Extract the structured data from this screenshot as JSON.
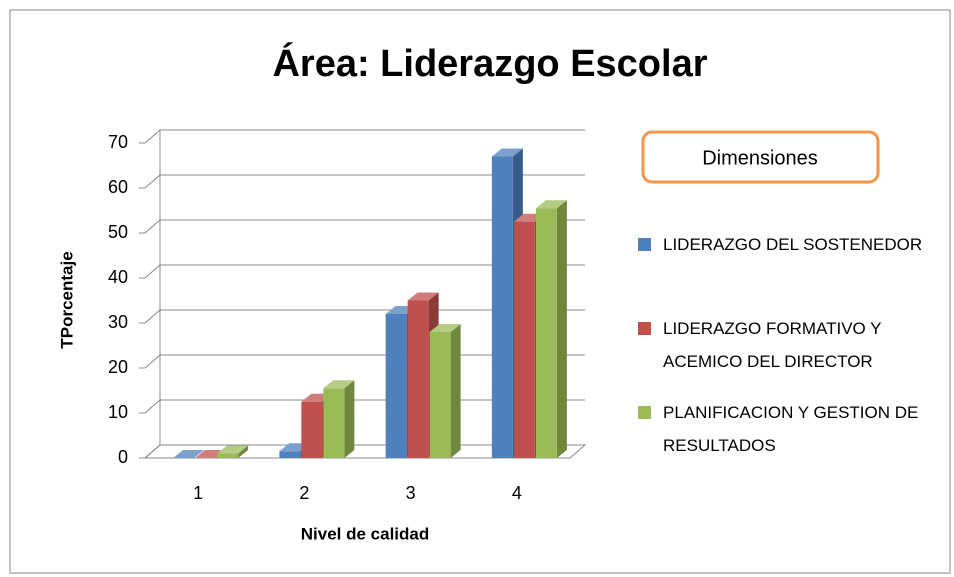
{
  "chart_data": {
    "type": "bar3d",
    "title": "Área: Liderazgo Escolar",
    "xlabel": "Nivel de calidad",
    "ylabel": "TPorcentaje",
    "categories": [
      "1",
      "2",
      "3",
      "4"
    ],
    "legend_title": "Dimensiones",
    "series": [
      {
        "name": "LIDERAZGO DEL SOSTENEDOR",
        "color": "#4f81bd",
        "values": [
          0,
          1.5,
          32,
          67
        ]
      },
      {
        "name": "LIDERAZGO FORMATIVO Y ACEMICO DEL DIRECTOR",
        "color": "#c0504d",
        "values": [
          0,
          12.5,
          35,
          52.5
        ]
      },
      {
        "name": "PLANIFICACION Y GESTION DE RESULTADOS",
        "color": "#9bbb59",
        "values": [
          1,
          15.5,
          28,
          55.5
        ]
      }
    ],
    "ylim": [
      0,
      70
    ],
    "yticks": [
      0,
      10,
      20,
      30,
      40,
      50,
      60,
      70
    ],
    "grid": true
  }
}
